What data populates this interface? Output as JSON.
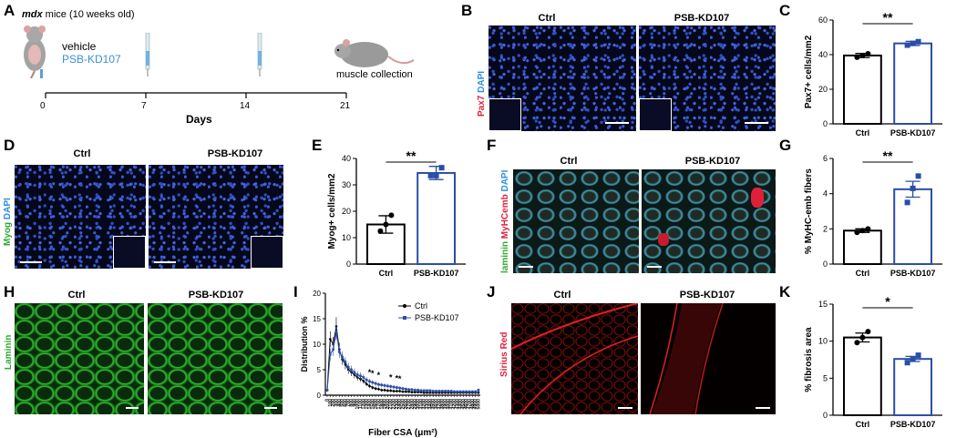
{
  "panels": {
    "A": {
      "letter": "A",
      "title_italic": "mdx",
      "title_rest": " mice (10 weeks old)",
      "vehicle": "vehicle",
      "drug": "PSB-KD107",
      "collection": "muscle collection",
      "ticks": [
        "0",
        "7",
        "14",
        "21"
      ],
      "xlabel": "Days",
      "drug_color": "#3d8fd6"
    },
    "B": {
      "letter": "B",
      "col1": "Ctrl",
      "col2": "PSB-KD107",
      "side_red": "Pax7",
      "side_blue": "DAPI"
    },
    "C": {
      "letter": "C",
      "sig": "**",
      "ylabel": "Pax7+ cells/mm2"
    },
    "D": {
      "letter": "D",
      "col1": "Ctrl",
      "col2": "PSB-KD107",
      "side_green": "Myog",
      "side_blue": "DAPI"
    },
    "E": {
      "letter": "E",
      "sig": "**",
      "ylabel": "Myog+ cells/mm2"
    },
    "F": {
      "letter": "F",
      "col1": "Ctrl",
      "col2": "PSB-KD107",
      "side_green": "laminin",
      "side_red": "MyHCemb",
      "side_blue": "DAPI"
    },
    "G": {
      "letter": "G",
      "sig": "**",
      "ylabel": "% MyHC-emb fibers"
    },
    "H": {
      "letter": "H",
      "col1": "Ctrl",
      "col2": "PSB-KD107",
      "side_green": "Laminin"
    },
    "I": {
      "letter": "I",
      "ylabel": "Distribution %",
      "xlabel": "Fiber CSA (μm²)",
      "legend_ctrl": "Ctrl",
      "legend_drug": "PSB-KD107",
      "star": "*"
    },
    "J": {
      "letter": "J",
      "col1": "Ctrl",
      "col2": "PSB-KD107",
      "side_red": "Sirius Red"
    },
    "K": {
      "letter": "K",
      "sig": "*",
      "ylabel": "% fibrosis area"
    }
  },
  "colors": {
    "ctrl": "#000000",
    "drug": "#2a4ea6",
    "green": "#2fa82f",
    "red": "#e0203a",
    "blue": "#2f8fe0"
  },
  "chart_data": [
    {
      "panel": "C",
      "type": "bar",
      "categories": [
        "Ctrl",
        "PSB-KD107"
      ],
      "values": [
        39.5,
        46.5
      ],
      "errors": [
        1.2,
        1.2
      ],
      "points": [
        [
          38.5,
          39.5,
          40.5
        ],
        [
          45.5,
          46.5,
          47.5
        ]
      ],
      "ylabel": "Pax7+ cells/mm2",
      "ylim": [
        0,
        60
      ],
      "yticks": [
        "0",
        "20",
        "40",
        "60"
      ]
    },
    {
      "panel": "E",
      "type": "bar",
      "categories": [
        "Ctrl",
        "PSB-KD107"
      ],
      "values": [
        15,
        34.5
      ],
      "errors": [
        3.3,
        2.5
      ],
      "points": [
        [
          12.5,
          15,
          18.5
        ],
        [
          33.5,
          33.5,
          36.5
        ]
      ],
      "ylabel": "Myog+ cells/mm2",
      "ylim": [
        0,
        40
      ],
      "yticks": [
        "0",
        "10",
        "20",
        "30",
        "40"
      ]
    },
    {
      "panel": "G",
      "type": "bar",
      "categories": [
        "Ctrl",
        "PSB-KD107"
      ],
      "values": [
        1.9,
        4.25
      ],
      "errors": [
        0.1,
        0.45
      ],
      "points": [
        [
          1.8,
          1.9,
          2.0
        ],
        [
          3.5,
          4.3,
          5.0
        ]
      ],
      "ylabel": "% MyHC-emb fibers",
      "ylim": [
        0,
        6
      ],
      "yticks": [
        "0",
        "2",
        "4",
        "6"
      ]
    },
    {
      "panel": "K",
      "type": "bar",
      "categories": [
        "Ctrl",
        "PSB-KD107"
      ],
      "values": [
        10.5,
        7.6
      ],
      "errors": [
        0.6,
        0.35
      ],
      "points": [
        [
          9.8,
          10.5,
          11.3
        ],
        [
          7.1,
          7.6,
          8.1
        ]
      ],
      "ylabel": "% fibrosis area",
      "ylim": [
        0,
        15
      ],
      "yticks": [
        "0",
        "5",
        "10",
        "15"
      ]
    },
    {
      "panel": "I",
      "type": "line",
      "ylabel": "Distribution %",
      "xlabel": "Fiber CSA (μm²)",
      "ylim": [
        0,
        20
      ],
      "yticks": [
        "0",
        "5",
        "10",
        "15",
        "20"
      ],
      "x": [
        "0",
        "100",
        "200",
        "300",
        "400",
        "500",
        "600",
        "700",
        "800",
        "900",
        "1000",
        "1100",
        "1200",
        "1300",
        "1400",
        "1500",
        "1600",
        "1700",
        "1800",
        "1900",
        "2000",
        "2100",
        "2200",
        "2300",
        "2400",
        "2500",
        "2600",
        "2700",
        "2800",
        "2900",
        "3000",
        "3100",
        "3200",
        "3300",
        "3400",
        "3500",
        "3600",
        "3700",
        "3800",
        "3900",
        "4000",
        "4100",
        "4200",
        "4300",
        "4400",
        "4500",
        "4600",
        "4700",
        "4800",
        "4900",
        "5000"
      ],
      "xticks": [
        "0",
        "100",
        "200",
        "300",
        "400",
        "500",
        "600",
        "700",
        "800",
        "900",
        "1000",
        "1100",
        "1200",
        "1300",
        "1400",
        "1500",
        "1600",
        "1700",
        "1800",
        "1900",
        "2000",
        "2100",
        "2200",
        "2300",
        "2400",
        "2500",
        "2600",
        "2700",
        "2800",
        "2900",
        "3000",
        "3100",
        "3200",
        "3300",
        "3400",
        "3500",
        "3600",
        "3700",
        "3800",
        "3900",
        "4000",
        "4100",
        "4200",
        "4300",
        "4400",
        "4500",
        "4600",
        "4700",
        "4800",
        "4900",
        "5000"
      ],
      "series": [
        {
          "name": "Ctrl",
          "values": [
            1,
            11,
            10,
            13.5,
            9,
            7,
            6,
            5,
            4.5,
            4,
            3.5,
            3.2,
            2.8,
            2.2,
            1.8,
            1.5,
            1.3,
            1.2,
            1.0,
            1.0,
            0.9,
            0.9,
            0.8,
            0.8,
            0.8,
            0.7,
            0.7,
            0.7,
            0.6,
            0.6,
            0.6,
            0.6,
            0.5,
            0.5,
            0.5,
            0.5,
            0.5,
            0.5,
            0.5,
            0.5,
            0.5,
            0.5,
            0.5,
            0.5,
            0.5,
            0.5,
            0.5,
            0.5,
            0.5,
            0.5,
            0.5
          ]
        },
        {
          "name": "PSB-KD107",
          "values": [
            1,
            8,
            9,
            12.5,
            8.5,
            7.5,
            6.5,
            5.5,
            5,
            4.5,
            4,
            3.8,
            3.5,
            3.0,
            2.7,
            2.5,
            2.3,
            2.1,
            2.0,
            1.9,
            1.8,
            1.7,
            1.6,
            1.5,
            1.4,
            1.3,
            1.2,
            1.1,
            1.1,
            1.0,
            1.0,
            0.9,
            0.9,
            0.9,
            0.9,
            0.8,
            0.8,
            0.8,
            0.8,
            0.8,
            0.8,
            0.8,
            0.7,
            0.7,
            0.7,
            0.7,
            0.7,
            0.7,
            0.7,
            0.7,
            1.0
          ]
        }
      ],
      "stars_at": [
        "1400",
        "1500",
        "1700",
        "2100",
        "2300",
        "2400"
      ]
    }
  ]
}
